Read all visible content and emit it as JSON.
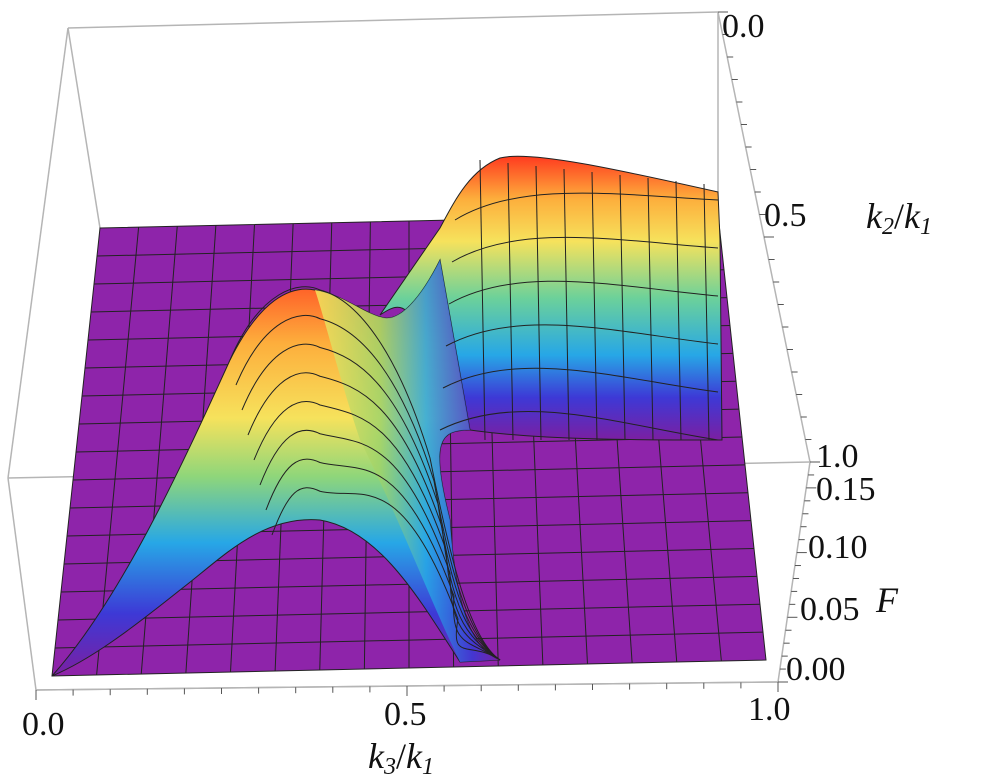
{
  "chart_data": {
    "type": "surface3d",
    "z_label": "F",
    "x_axis": {
      "label_main": "k",
      "label_sub": "3",
      "label_sep": "/",
      "label_main2": "k",
      "label_sub2": "1",
      "range": [
        0,
        1
      ],
      "ticks": [
        "0.0",
        "0.5",
        "1.0"
      ]
    },
    "y_axis": {
      "label_main": "k",
      "label_sub": "2",
      "label_sep": "/",
      "label_main2": "k",
      "label_sub2": "1",
      "range": [
        0,
        1
      ],
      "ticks": [
        "0.0",
        "0.5",
        "1.0"
      ]
    },
    "z_axis": {
      "range": [
        0,
        0.17
      ],
      "ticks": [
        "0.00",
        "0.05",
        "0.10",
        "0.15"
      ]
    },
    "features": [
      {
        "description": "left ridge peak",
        "k3_over_k1": 0.3,
        "k2_over_k1": 0.75,
        "F": 0.17
      },
      {
        "description": "back ridge peak",
        "k3_over_k1": 0.55,
        "k2_over_k1": 0.45,
        "F": 0.16
      },
      {
        "description": "flat region",
        "F": 0.0
      }
    ],
    "colormap": [
      "#7b1fa2",
      "#3d39d6",
      "#27a7e6",
      "#6cd19a",
      "#f6e25c",
      "#fdae3c",
      "#ff3b1f"
    ],
    "mesh": true,
    "box": true
  }
}
